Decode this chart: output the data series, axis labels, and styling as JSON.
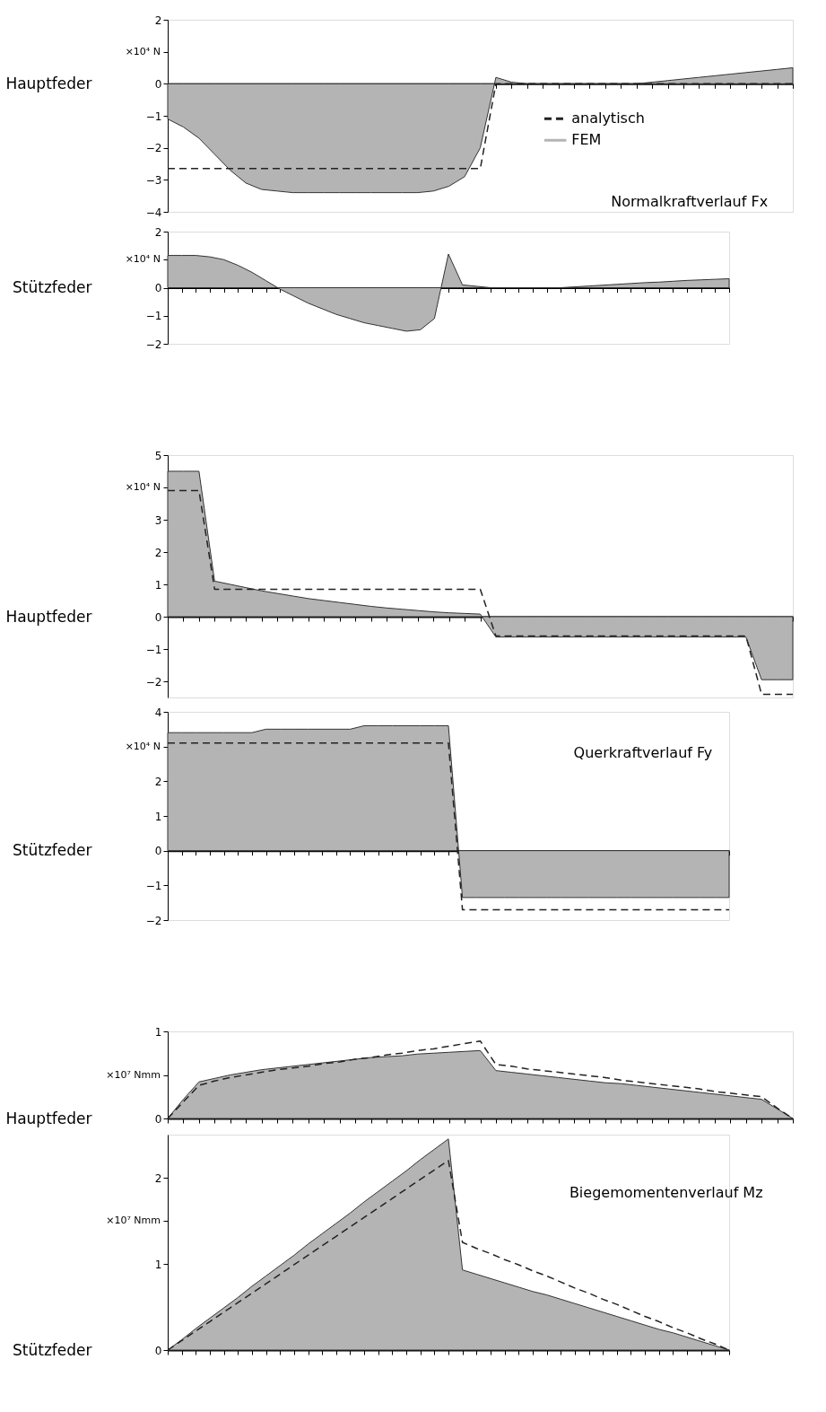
{
  "chart_data": [
    {
      "type": "area",
      "ylabel": "Hauptfeder",
      "tick_labels": "y",
      "legend": "right",
      "annotations": [
        "×10⁴ N",
        "Normalkraftverlauf Fx"
      ],
      "categories": [
        null,
        null,
        null,
        null,
        null,
        null,
        null,
        null,
        null,
        null,
        null,
        null,
        null,
        null,
        null,
        null,
        null,
        null,
        null,
        null,
        null,
        null,
        null,
        null,
        null,
        null,
        null,
        null,
        null,
        null,
        null,
        null,
        null,
        null,
        null,
        null,
        null,
        null,
        null,
        null,
        null
      ],
      "ylim": [
        -4,
        2
      ],
      "yticks": [
        2,
        {
          "value": 1,
          "label": null
        },
        0,
        -1,
        -2,
        -3,
        -4
      ],
      "series": [
        {
          "name": "analytisch",
          "type": "line",
          "line_style": "dashed",
          "color": "#222222",
          "values": [
            -2.65,
            -2.65,
            -2.65,
            -2.65,
            -2.65,
            -2.65,
            -2.65,
            -2.65,
            -2.65,
            -2.65,
            -2.65,
            -2.65,
            -2.65,
            -2.65,
            -2.65,
            -2.65,
            -2.65,
            -2.65,
            -2.65,
            -2.65,
            -2.65,
            0,
            0,
            0,
            0,
            0,
            0,
            0,
            0,
            0,
            0,
            0,
            0,
            0,
            0,
            0,
            0,
            0,
            0,
            0,
            0
          ]
        },
        {
          "name": "FEM",
          "color": "#b4b4b4",
          "values": [
            -1.1,
            -1.35,
            -1.7,
            -2.2,
            -2.7,
            -3.1,
            -3.3,
            -3.35,
            -3.4,
            -3.4,
            -3.4,
            -3.4,
            -3.4,
            -3.4,
            -3.4,
            -3.4,
            -3.4,
            -3.35,
            -3.2,
            -2.9,
            -2.0,
            0.2,
            0.05,
            0,
            0,
            0,
            0,
            0,
            0,
            0,
            0,
            0.05,
            0.1,
            0.15,
            0.2,
            0.25,
            0.3,
            0.35,
            0.4,
            0.45,
            0.5
          ]
        }
      ]
    },
    {
      "type": "area",
      "ylabel": "Stützfeder",
      "tick_labels": "y",
      "annotations": [
        "×10⁴ N"
      ],
      "categories": [
        null,
        null,
        null,
        null,
        null,
        null,
        null,
        null,
        null,
        null,
        null,
        null,
        null,
        null,
        null,
        null,
        null,
        null,
        null,
        null,
        null,
        null,
        null,
        null,
        null,
        null,
        null,
        null,
        null,
        null,
        null,
        null,
        null,
        null,
        null,
        null,
        null,
        null,
        null,
        null,
        null
      ],
      "ylim": [
        -2,
        2
      ],
      "yticks": [
        2,
        {
          "value": 1,
          "label": null
        },
        0,
        -1,
        -2
      ],
      "series": [
        {
          "color": "#b4b4b4",
          "values": [
            1.15,
            1.15,
            1.15,
            1.1,
            1.0,
            0.8,
            0.55,
            0.25,
            -0.05,
            -0.3,
            -0.55,
            -0.75,
            -0.95,
            -1.1,
            -1.25,
            -1.35,
            -1.45,
            -1.55,
            -1.5,
            -1.1,
            1.2,
            0.1,
            0.05,
            0,
            0,
            0,
            0,
            0,
            0,
            0.03,
            0.06,
            0.09,
            0.12,
            0.15,
            0.18,
            0.2,
            0.23,
            0.26,
            0.28,
            0.3,
            0.32
          ]
        }
      ]
    },
    {
      "type": "area",
      "ylabel": "Hauptfeder",
      "tick_labels": "y",
      "annotations": [
        "×10⁴ N"
      ],
      "categories": [
        null,
        null,
        null,
        null,
        null,
        null,
        null,
        null,
        null,
        null,
        null,
        null,
        null,
        null,
        null,
        null,
        null,
        null,
        null,
        null,
        null,
        null,
        null,
        null,
        null,
        null,
        null,
        null,
        null,
        null,
        null,
        null,
        null,
        null,
        null,
        null,
        null,
        null,
        null,
        null,
        null
      ],
      "ylim": [
        -2.5,
        5
      ],
      "yticks": [
        5,
        {
          "value": 4,
          "label": null
        },
        3,
        2,
        1,
        0,
        -1,
        -2
      ],
      "series": [
        {
          "type": "line",
          "line_style": "dashed",
          "color": "#222222",
          "values": [
            3.9,
            3.9,
            3.9,
            0.85,
            0.85,
            0.85,
            0.85,
            0.85,
            0.85,
            0.85,
            0.85,
            0.85,
            0.85,
            0.85,
            0.85,
            0.85,
            0.85,
            0.85,
            0.85,
            0.85,
            0.85,
            -0.6,
            -0.6,
            -0.6,
            -0.6,
            -0.6,
            -0.6,
            -0.6,
            -0.6,
            -0.6,
            -0.6,
            -0.6,
            -0.6,
            -0.6,
            -0.6,
            -0.6,
            -0.6,
            -0.6,
            -2.4,
            -2.4,
            -2.4
          ]
        },
        {
          "color": "#b4b4b4",
          "values": [
            4.5,
            4.5,
            4.5,
            1.1,
            1.0,
            0.9,
            0.8,
            0.72,
            0.64,
            0.56,
            0.5,
            0.44,
            0.38,
            0.32,
            0.27,
            0.23,
            0.19,
            0.15,
            0.12,
            0.1,
            0.08,
            -0.63,
            -0.63,
            -0.63,
            -0.63,
            -0.63,
            -0.63,
            -0.63,
            -0.63,
            -0.63,
            -0.63,
            -0.63,
            -0.63,
            -0.63,
            -0.63,
            -0.63,
            -0.63,
            -0.63,
            -1.95,
            -1.95,
            -1.95
          ]
        }
      ]
    },
    {
      "type": "area",
      "ylabel": "Stützfeder",
      "tick_labels": "y",
      "annotations": [
        "×10⁴ N",
        "Querkraftverlauf Fy"
      ],
      "categories": [
        null,
        null,
        null,
        null,
        null,
        null,
        null,
        null,
        null,
        null,
        null,
        null,
        null,
        null,
        null,
        null,
        null,
        null,
        null,
        null,
        null,
        null,
        null,
        null,
        null,
        null,
        null,
        null,
        null,
        null,
        null,
        null,
        null,
        null,
        null,
        null,
        null,
        null,
        null,
        null,
        null
      ],
      "ylim": [
        -2,
        4
      ],
      "yticks": [
        4,
        {
          "value": 3,
          "label": null
        },
        2,
        1,
        0,
        -1,
        -2
      ],
      "series": [
        {
          "type": "line",
          "line_style": "dashed",
          "color": "#222222",
          "values": [
            3.1,
            3.1,
            3.1,
            3.1,
            3.1,
            3.1,
            3.1,
            3.1,
            3.1,
            3.1,
            3.1,
            3.1,
            3.1,
            3.1,
            3.1,
            3.1,
            3.1,
            3.1,
            3.1,
            3.1,
            3.1,
            -1.7,
            -1.7,
            -1.7,
            -1.7,
            -1.7,
            -1.7,
            -1.7,
            -1.7,
            -1.7,
            -1.7,
            -1.7,
            -1.7,
            -1.7,
            -1.7,
            -1.7,
            -1.7,
            -1.7,
            -1.7,
            -1.7,
            -1.7
          ]
        },
        {
          "color": "#b4b4b4",
          "values": [
            3.4,
            3.4,
            3.4,
            3.4,
            3.4,
            3.4,
            3.4,
            3.5,
            3.5,
            3.5,
            3.5,
            3.5,
            3.5,
            3.5,
            3.6,
            3.6,
            3.6,
            3.6,
            3.6,
            3.6,
            3.6,
            -1.35,
            -1.35,
            -1.35,
            -1.35,
            -1.35,
            -1.35,
            -1.35,
            -1.35,
            -1.35,
            -1.35,
            -1.35,
            -1.35,
            -1.35,
            -1.35,
            -1.35,
            -1.35,
            -1.35,
            -1.35,
            -1.35,
            -1.35
          ]
        }
      ]
    },
    {
      "type": "area",
      "ylabel": "Hauptfeder",
      "tick_labels": "y",
      "annotations": [
        "×10⁷ Nmm"
      ],
      "categories": [
        null,
        null,
        null,
        null,
        null,
        null,
        null,
        null,
        null,
        null,
        null,
        null,
        null,
        null,
        null,
        null,
        null,
        null,
        null,
        null,
        null,
        null,
        null,
        null,
        null,
        null,
        null,
        null,
        null,
        null,
        null,
        null,
        null,
        null,
        null,
        null,
        null,
        null,
        null,
        null,
        null
      ],
      "ylim": [
        0,
        1
      ],
      "yticks": [
        1,
        {
          "value": 0.5,
          "label": null
        },
        0
      ],
      "series": [
        {
          "type": "line",
          "line_style": "dashed",
          "color": "#222222",
          "values": [
            0,
            0.19,
            0.38,
            0.43,
            0.47,
            0.5,
            0.53,
            0.56,
            0.58,
            0.6,
            0.63,
            0.65,
            0.68,
            0.7,
            0.73,
            0.75,
            0.78,
            0.8,
            0.83,
            0.86,
            0.89,
            0.62,
            0.6,
            0.57,
            0.55,
            0.53,
            0.51,
            0.49,
            0.47,
            0.44,
            0.42,
            0.4,
            0.38,
            0.36,
            0.34,
            0.31,
            0.29,
            0.27,
            0.25,
            0.12,
            0
          ]
        },
        {
          "color": "#b4b4b4",
          "values": [
            0,
            0.22,
            0.42,
            0.46,
            0.5,
            0.53,
            0.56,
            0.58,
            0.6,
            0.62,
            0.64,
            0.66,
            0.68,
            0.7,
            0.71,
            0.72,
            0.74,
            0.75,
            0.76,
            0.77,
            0.78,
            0.55,
            0.53,
            0.51,
            0.49,
            0.47,
            0.45,
            0.43,
            0.41,
            0.4,
            0.38,
            0.36,
            0.34,
            0.32,
            0.3,
            0.28,
            0.26,
            0.24,
            0.22,
            0.11,
            0
          ]
        }
      ]
    },
    {
      "type": "area",
      "ylabel": "Stützfeder",
      "tick_labels": "y",
      "annotations": [
        "×10⁷ Nmm",
        "Biegemomentenverlauf Mz"
      ],
      "categories": [
        null,
        null,
        null,
        null,
        null,
        null,
        null,
        null,
        null,
        null,
        null,
        null,
        null,
        null,
        null,
        null,
        null,
        null,
        null,
        null,
        null,
        null,
        null,
        null,
        null,
        null,
        null,
        null,
        null,
        null,
        null,
        null,
        null,
        null,
        null,
        null,
        null,
        null,
        null,
        null,
        null
      ],
      "ylim": [
        0,
        2.5
      ],
      "yticks": [
        2,
        {
          "value": 1.5,
          "label": null
        },
        1,
        0
      ],
      "series": [
        {
          "type": "line",
          "line_style": "dashed",
          "color": "#222222",
          "values": [
            0,
            0.11,
            0.22,
            0.33,
            0.44,
            0.55,
            0.66,
            0.77,
            0.88,
            0.99,
            1.1,
            1.21,
            1.32,
            1.43,
            1.54,
            1.65,
            1.76,
            1.87,
            1.98,
            2.09,
            2.2,
            1.25,
            1.18,
            1.12,
            1.05,
            0.99,
            0.92,
            0.86,
            0.79,
            0.72,
            0.66,
            0.59,
            0.53,
            0.46,
            0.39,
            0.33,
            0.26,
            0.2,
            0.13,
            0.07,
            0
          ]
        },
        {
          "color": "#b4b4b4",
          "values": [
            0,
            0.12,
            0.25,
            0.37,
            0.49,
            0.61,
            0.74,
            0.86,
            0.98,
            1.1,
            1.23,
            1.35,
            1.47,
            1.59,
            1.72,
            1.84,
            1.96,
            2.08,
            2.21,
            2.33,
            2.45,
            0.93,
            0.88,
            0.83,
            0.78,
            0.73,
            0.68,
            0.64,
            0.59,
            0.54,
            0.49,
            0.44,
            0.39,
            0.34,
            0.29,
            0.24,
            0.2,
            0.15,
            0.1,
            0.05,
            0
          ]
        }
      ]
    }
  ]
}
